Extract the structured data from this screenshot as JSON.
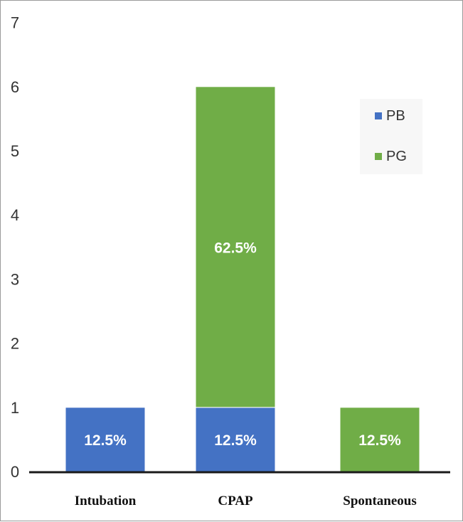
{
  "chart_data": {
    "type": "bar",
    "stacked": true,
    "categories": [
      "Intubation",
      "CPAP",
      "Spontaneous"
    ],
    "series": [
      {
        "name": "PB",
        "color": "#4472C4",
        "values": [
          1,
          1,
          0
        ],
        "labels": [
          "12.5%",
          "12.5%",
          ""
        ]
      },
      {
        "name": "PG",
        "color": "#70AD47",
        "values": [
          0,
          5,
          1
        ],
        "labels": [
          "",
          "62.5%",
          "12.5%"
        ]
      }
    ],
    "yticks": [
      0,
      1,
      2,
      3,
      4,
      5,
      6,
      7
    ],
    "ylim": [
      0,
      7
    ],
    "grid": false,
    "legend_position": "top-right"
  }
}
